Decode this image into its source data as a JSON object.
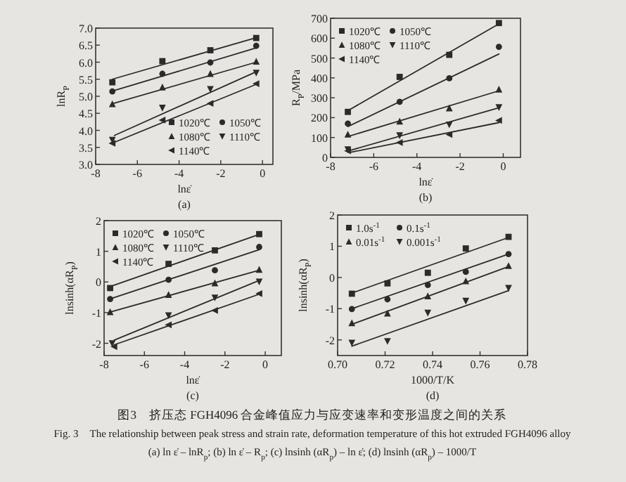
{
  "chart_data": [
    {
      "type": "scatter",
      "title": "(a)",
      "xlabel": "lnε̇",
      "ylabel": "lnR$_{P}$",
      "xlim": [
        -8,
        0.5
      ],
      "ylim": [
        3,
        7
      ],
      "xticks": [
        -8,
        -6,
        -4,
        -2,
        0
      ],
      "yticks": [
        {
          "value": 3,
          "label": "3.0"
        },
        {
          "value": 3.5,
          "label": "3.5"
        },
        {
          "value": 4,
          "label": "4.0"
        },
        {
          "value": 4.5,
          "label": "4.5"
        },
        {
          "value": 5,
          "label": "5.0"
        },
        {
          "value": 5.5,
          "label": "5.5"
        },
        {
          "value": 6,
          "label": "6.0"
        },
        {
          "value": 6.5,
          "label": "6.5"
        },
        {
          "value": 7,
          "label": "7.0"
        }
      ],
      "legend": "bottom right",
      "series": [
        {
          "name": "1020℃",
          "color": "#2b2b2b",
          "marker": "square",
          "x": [
            -7.2,
            -4.8,
            -2.5,
            -0.3
          ],
          "values": [
            5.41,
            6.03,
            6.35,
            6.71
          ]
        },
        {
          "name": "1050℃",
          "color": "#2b2b2b",
          "marker": "circle",
          "x": [
            -7.2,
            -4.8,
            -2.5,
            -0.3
          ],
          "values": [
            5.14,
            5.66,
            5.99,
            6.48
          ]
        },
        {
          "name": "1080℃",
          "color": "#2b2b2b",
          "marker": "triangle",
          "x": [
            -7.2,
            -4.8,
            -2.5,
            -0.3
          ],
          "values": [
            4.77,
            5.26,
            5.66,
            6.02
          ]
        },
        {
          "name": "1110℃",
          "color": "#2b2b2b",
          "marker": "triangle-down",
          "x": [
            -7.2,
            -4.8,
            -2.5,
            -0.3
          ],
          "values": [
            3.72,
            4.66,
            5.21,
            5.69
          ]
        },
        {
          "name": "1140℃",
          "color": "#2b2b2b",
          "marker": "triangle-left",
          "x": [
            -7.2,
            -4.8,
            -2.5,
            -0.3
          ],
          "values": [
            3.62,
            4.3,
            4.79,
            5.37
          ]
        },
        {
          "type": "line",
          "color": "#2b2b2b",
          "x": [
            -7.2,
            -0.3
          ],
          "values": [
            5.5,
            6.72
          ]
        },
        {
          "type": "line",
          "color": "#2b2b2b",
          "x": [
            -7.2,
            -0.3
          ],
          "values": [
            5.15,
            6.42
          ]
        },
        {
          "type": "line",
          "color": "#2b2b2b",
          "x": [
            -7.2,
            -0.3
          ],
          "values": [
            4.78,
            6.0
          ]
        },
        {
          "type": "line",
          "color": "#2b2b2b",
          "x": [
            -7.1,
            -0.3
          ],
          "values": [
            3.85,
            5.72
          ]
        },
        {
          "type": "line",
          "color": "#2b2b2b",
          "x": [
            -7.1,
            -0.3
          ],
          "values": [
            3.65,
            5.35
          ]
        }
      ]
    },
    {
      "type": "scatter",
      "title": "(b)",
      "xlabel": "lnε̇",
      "ylabel": "R$_{P}$/MPa",
      "xlim": [
        -8,
        0.8
      ],
      "ylim": [
        0,
        700
      ],
      "xticks": [
        -8,
        -6,
        -4,
        -2,
        0
      ],
      "yticks": [
        0,
        100,
        200,
        300,
        400,
        500,
        600,
        700
      ],
      "legend": "top left",
      "series": [
        {
          "name": "1020℃",
          "color": "#2b2b2b",
          "marker": "square",
          "x": [
            -7.2,
            -4.8,
            -2.5,
            -0.2
          ],
          "values": [
            229,
            405,
            516,
            676
          ]
        },
        {
          "name": "1050℃",
          "color": "#2b2b2b",
          "marker": "circle",
          "x": [
            -7.2,
            -4.8,
            -2.5,
            -0.2
          ],
          "values": [
            170,
            280,
            398,
            556
          ]
        },
        {
          "name": "1080℃",
          "color": "#2b2b2b",
          "marker": "triangle",
          "x": [
            -7.2,
            -4.8,
            -2.5,
            -0.2
          ],
          "values": [
            115,
            181,
            247,
            342
          ]
        },
        {
          "name": "1110℃",
          "color": "#2b2b2b",
          "marker": "triangle-down",
          "x": [
            -7.2,
            -4.8,
            -2.5,
            -0.2
          ],
          "values": [
            40,
            111,
            165,
            252
          ]
        },
        {
          "name": "1140℃",
          "color": "#2b2b2b",
          "marker": "triangle-left",
          "x": [
            -7.2,
            -4.8,
            -2.5,
            -0.2
          ],
          "values": [
            33,
            75,
            115,
            186
          ]
        },
        {
          "type": "line",
          "color": "#2b2b2b",
          "x": [
            -7.2,
            -0.2
          ],
          "values": [
            235,
            672
          ]
        },
        {
          "type": "line",
          "color": "#2b2b2b",
          "x": [
            -7.2,
            -0.2
          ],
          "values": [
            155,
            520
          ]
        },
        {
          "type": "line",
          "color": "#2b2b2b",
          "x": [
            -7.2,
            -0.2
          ],
          "values": [
            105,
            335
          ]
        },
        {
          "type": "line",
          "color": "#2b2b2b",
          "x": [
            -7.1,
            -0.2
          ],
          "values": [
            35,
            250
          ]
        },
        {
          "type": "line",
          "color": "#2b2b2b",
          "x": [
            -7.1,
            -0.2
          ],
          "values": [
            25,
            175
          ]
        }
      ]
    },
    {
      "type": "scatter",
      "title": "(c)",
      "xlabel": "lnε̇",
      "ylabel": "lnsinh(αR$_{P}$)",
      "xlim": [
        -8,
        0.8
      ],
      "ylim": [
        -2.4,
        2
      ],
      "xticks": [
        -8,
        -6,
        -4,
        -2,
        0
      ],
      "yticks": [
        -2,
        -1,
        0,
        1,
        2
      ],
      "legend": "top left",
      "series": [
        {
          "name": "1020℃",
          "color": "#2b2b2b",
          "marker": "square",
          "x": [
            -7.7,
            -4.8,
            -2.5,
            -0.3
          ],
          "values": [
            -0.2,
            0.59,
            1.03,
            1.56
          ]
        },
        {
          "name": "1050℃",
          "color": "#2b2b2b",
          "marker": "circle",
          "x": [
            -7.7,
            -4.8,
            -2.5,
            -0.3
          ],
          "values": [
            -0.56,
            0.07,
            0.38,
            1.14
          ]
        },
        {
          "name": "1080℃",
          "color": "#2b2b2b",
          "marker": "triangle",
          "x": [
            -7.7,
            -4.8,
            -2.5,
            -0.3
          ],
          "values": [
            -0.98,
            -0.42,
            -0.04,
            0.4
          ]
        },
        {
          "name": "1110℃",
          "color": "#2b2b2b",
          "marker": "triangle-down",
          "x": [
            -7.6,
            -4.8,
            -2.5,
            -0.3
          ],
          "values": [
            -2.0,
            -1.09,
            -0.51,
            0.01
          ]
        },
        {
          "name": "1140℃",
          "color": "#2b2b2b",
          "marker": "triangle-left",
          "x": [
            -7.5,
            -4.8,
            -2.5,
            -0.3
          ],
          "values": [
            -2.11,
            -1.4,
            -0.93,
            -0.38
          ]
        },
        {
          "type": "line",
          "color": "#2b2b2b",
          "x": [
            -7.7,
            -0.3
          ],
          "values": [
            -0.15,
            1.55
          ]
        },
        {
          "type": "line",
          "color": "#2b2b2b",
          "x": [
            -7.7,
            -0.3
          ],
          "values": [
            -0.55,
            1.05
          ]
        },
        {
          "type": "line",
          "color": "#2b2b2b",
          "x": [
            -7.7,
            -0.3
          ],
          "values": [
            -0.98,
            0.38
          ]
        },
        {
          "type": "line",
          "color": "#2b2b2b",
          "x": [
            -7.5,
            -0.3
          ],
          "values": [
            -1.9,
            0.05
          ]
        },
        {
          "type": "line",
          "color": "#2b2b2b",
          "x": [
            -7.5,
            -0.3
          ],
          "values": [
            -2.05,
            -0.4
          ]
        }
      ]
    },
    {
      "type": "scatter",
      "title": "(d)",
      "xlabel": "1000/T/K",
      "ylabel": "lnsinh(αR$_{P}$)",
      "xlim": [
        0.7,
        0.78
      ],
      "ylim": [
        -2.5,
        2
      ],
      "xticks": [
        {
          "value": 0.7,
          "label": "0.70"
        },
        {
          "value": 0.72,
          "label": "0.72"
        },
        {
          "value": 0.74,
          "label": "0.74"
        },
        {
          "value": 0.76,
          "label": "0.76"
        },
        {
          "value": 0.78,
          "label": "0.78"
        }
      ],
      "yticks": [
        -2,
        -1,
        0,
        1,
        2
      ],
      "legend": "top left",
      "series": [
        {
          "name": "1.0s$^{-1}$",
          "color": "#2b2b2b",
          "marker": "square",
          "x": [
            0.706,
            0.721,
            0.738,
            0.754,
            0.772
          ],
          "values": [
            -0.52,
            -0.19,
            0.15,
            0.93,
            1.3
          ]
        },
        {
          "name": "0.1s$^{-1}$",
          "color": "#2b2b2b",
          "marker": "circle",
          "x": [
            0.706,
            0.721,
            0.738,
            0.754,
            0.772
          ],
          "values": [
            -1.01,
            -0.7,
            -0.24,
            0.18,
            0.75
          ]
        },
        {
          "name": "0.01s$^{-1}$",
          "color": "#2b2b2b",
          "marker": "triangle",
          "x": [
            0.706,
            0.721,
            0.738,
            0.754,
            0.772
          ],
          "values": [
            -1.46,
            -1.15,
            -0.6,
            -0.12,
            0.37
          ]
        },
        {
          "name": "0.001s$^{-1}$",
          "color": "#2b2b2b",
          "marker": "triangle-down",
          "x": [
            0.706,
            0.721,
            0.738,
            0.754,
            0.772
          ],
          "values": [
            -2.09,
            -2.04,
            -1.13,
            -0.75,
            -0.34
          ]
        },
        {
          "type": "line",
          "color": "#2b2b2b",
          "x": [
            0.706,
            0.772
          ],
          "values": [
            -0.5,
            1.28
          ]
        },
        {
          "type": "line",
          "color": "#2b2b2b",
          "x": [
            0.706,
            0.772
          ],
          "values": [
            -1.0,
            0.75
          ]
        },
        {
          "type": "line",
          "color": "#2b2b2b",
          "x": [
            0.706,
            0.772
          ],
          "values": [
            -1.5,
            0.35
          ]
        },
        {
          "type": "line",
          "color": "#2b2b2b",
          "x": [
            0.706,
            0.772
          ],
          "values": [
            -2.2,
            -0.42
          ]
        }
      ],
      "annotations": [
        "图3　挤压态 FGH4096 合金峰值应力与应变速率和变形温度之间的关系",
        "Fig. 3　The relationship between peak stress and strain rate, deformation temperature of this hot extruded FGH4096 alloy",
        "(a) ln ε̇ – lnR$_{p}$; (b) ln ε̇ – R$_{p}$; (c) lnsinh (αR$_{p}$) – ln ε̇; (d) lnsinh (αR$_{p}$) – 1000/T"
      ]
    }
  ]
}
